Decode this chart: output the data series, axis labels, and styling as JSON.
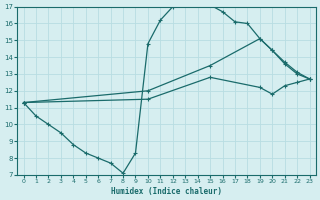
{
  "xlabel": "Humidex (Indice chaleur)",
  "bg_color": "#d6eef0",
  "grid_color": "#c8e8ec",
  "line_color": "#1a6b6b",
  "xlim": [
    -0.5,
    23.5
  ],
  "ylim": [
    7,
    17
  ],
  "xticks": [
    0,
    1,
    2,
    3,
    4,
    5,
    6,
    7,
    8,
    9,
    10,
    11,
    12,
    13,
    14,
    15,
    16,
    17,
    18,
    19,
    20,
    21,
    22,
    23
  ],
  "yticks": [
    7,
    8,
    9,
    10,
    11,
    12,
    13,
    14,
    15,
    16,
    17
  ],
  "line1_x": [
    0,
    1,
    2,
    3,
    4,
    5,
    6,
    7,
    8,
    9,
    10,
    11,
    12,
    13,
    14,
    15,
    16,
    17,
    18,
    19,
    20,
    21,
    22,
    23
  ],
  "line1_y": [
    11.3,
    10.5,
    10.0,
    9.5,
    8.8,
    8.3,
    8.0,
    7.7,
    7.1,
    8.3,
    14.8,
    16.2,
    17.0,
    17.2,
    17.2,
    17.1,
    16.7,
    16.1,
    16.0,
    15.1,
    14.4,
    13.6,
    13.0,
    12.7
  ],
  "line2_x": [
    0,
    10,
    15,
    19,
    20,
    21,
    22,
    23
  ],
  "line2_y": [
    11.3,
    12.0,
    13.5,
    15.1,
    14.4,
    13.7,
    13.1,
    12.7
  ],
  "line3_x": [
    0,
    10,
    15,
    19,
    20,
    21,
    22,
    23
  ],
  "line3_y": [
    11.3,
    11.5,
    12.8,
    12.2,
    11.8,
    12.3,
    12.5,
    12.7
  ]
}
